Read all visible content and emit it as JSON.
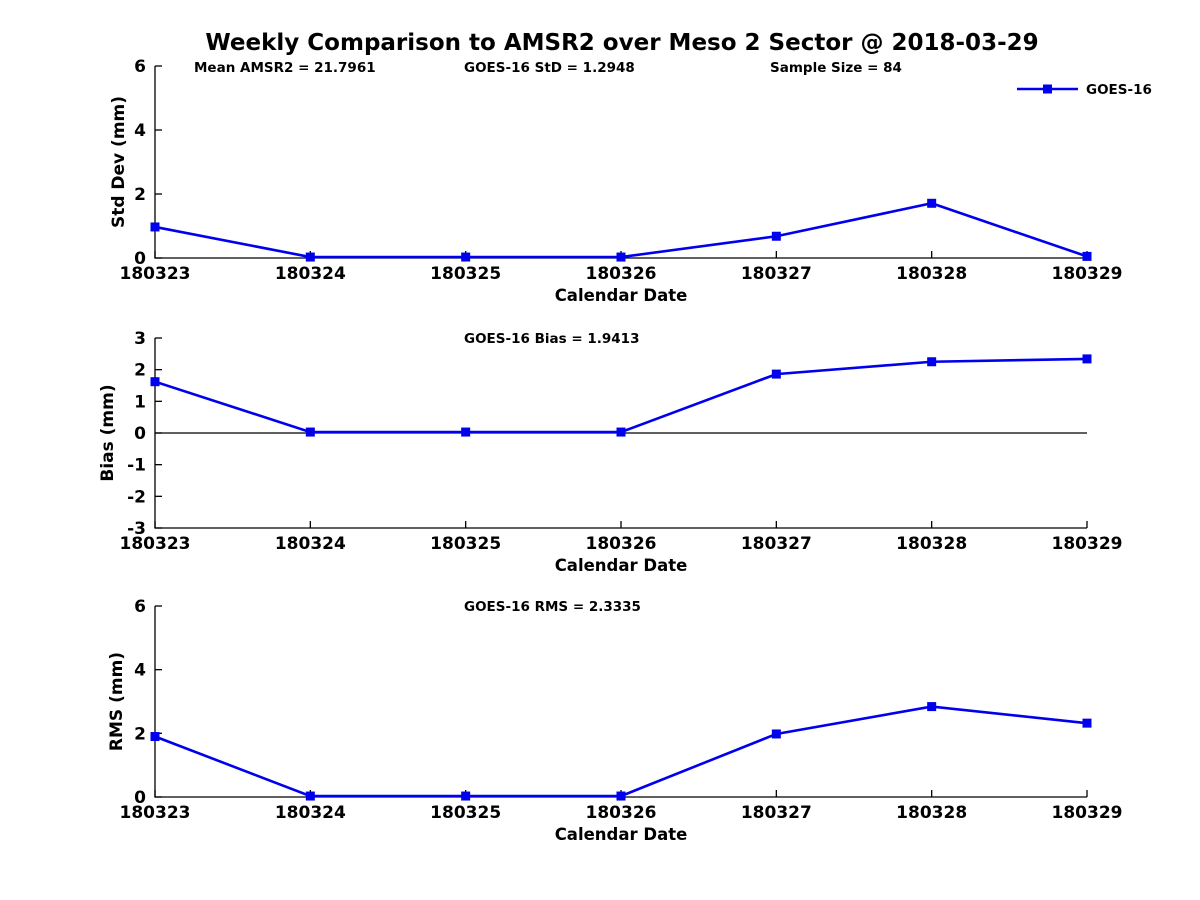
{
  "page": {
    "title": "Weekly Comparison to AMSR2 over Meso 2 Sector @ 2018-03-29"
  },
  "style": {
    "line_color": "#0000ee",
    "axis_color": "#000000",
    "background": "#ffffff"
  },
  "legend": {
    "label": "GOES-16",
    "position": "top-right"
  },
  "x_axis": {
    "label": "Calendar Date",
    "categories": [
      "180323",
      "180324",
      "180325",
      "180326",
      "180327",
      "180328",
      "180329"
    ]
  },
  "chart_data": [
    {
      "type": "line",
      "title": "",
      "annotations": [
        "Mean AMSR2 = 21.7961",
        "GOES-16 StD = 1.2948",
        "Sample Size = 84"
      ],
      "xlabel": "Calendar Date",
      "ylabel": "Std Dev (mm)",
      "categories": [
        "180323",
        "180324",
        "180325",
        "180326",
        "180327",
        "180328",
        "180329"
      ],
      "series": [
        {
          "name": "GOES-16",
          "values": [
            0.97,
            0.03,
            0.03,
            0.03,
            0.68,
            1.71,
            0.05
          ]
        }
      ],
      "ylim": [
        0,
        6
      ],
      "yticks": [
        0,
        2,
        4,
        6
      ],
      "zero_line": false,
      "grid": false,
      "show_legend": true
    },
    {
      "type": "line",
      "title": "GOES-16 Bias  = 1.9413",
      "annotations": [],
      "xlabel": "Calendar Date",
      "ylabel": "Bias (mm)",
      "categories": [
        "180323",
        "180324",
        "180325",
        "180326",
        "180327",
        "180328",
        "180329"
      ],
      "series": [
        {
          "name": "GOES-16",
          "values": [
            1.62,
            0.03,
            0.03,
            0.03,
            1.86,
            2.25,
            2.34
          ]
        }
      ],
      "ylim": [
        -3,
        3
      ],
      "yticks": [
        -3,
        -2,
        -1,
        0,
        1,
        2,
        3
      ],
      "zero_line": true,
      "grid": false,
      "show_legend": false
    },
    {
      "type": "line",
      "title": "GOES-16 RMS = 2.3335",
      "annotations": [],
      "xlabel": "Calendar Date",
      "ylabel": "RMS (mm)",
      "categories": [
        "180323",
        "180324",
        "180325",
        "180326",
        "180327",
        "180328",
        "180329"
      ],
      "series": [
        {
          "name": "GOES-16",
          "values": [
            1.9,
            0.03,
            0.03,
            0.03,
            1.98,
            2.84,
            2.32
          ]
        }
      ],
      "ylim": [
        0,
        6
      ],
      "yticks": [
        0,
        2,
        4,
        6
      ],
      "zero_line": false,
      "grid": false,
      "show_legend": false
    }
  ]
}
